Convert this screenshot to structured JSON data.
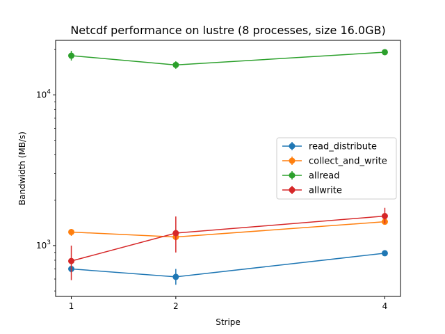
{
  "chart_data": {
    "type": "line",
    "title": "Netcdf performance on lustre (8 processes, size 16.0GB)",
    "xlabel": "Stripe",
    "ylabel": "Bandwidth (MB/s)",
    "x": [
      1,
      2,
      4
    ],
    "x_tick_labels": [
      "1",
      "2",
      "4"
    ],
    "y_scale": "log",
    "ylim": [
      460,
      23000
    ],
    "y_ticks": [
      {
        "value": 1000,
        "base": "10",
        "exp": "3"
      },
      {
        "value": 10000,
        "base": "10",
        "exp": "4"
      }
    ],
    "legend_position": "center-right",
    "grid": false,
    "series": [
      {
        "name": "read_distribute",
        "color": "#1f77b4",
        "values": [
          700,
          620,
          890
        ],
        "err_low": [
          660,
          550,
          870
        ],
        "err_high": [
          740,
          700,
          910
        ]
      },
      {
        "name": "collect_and_write",
        "color": "#ff7f0e",
        "values": [
          1230,
          1140,
          1440
        ],
        "err_low": [
          1160,
          1080,
          1400
        ],
        "err_high": [
          1290,
          1200,
          1480
        ]
      },
      {
        "name": "allread",
        "color": "#2ca02c",
        "values": [
          18200,
          15800,
          19200
        ],
        "err_low": [
          16900,
          14900,
          18800
        ],
        "err_high": [
          19600,
          16700,
          19600
        ]
      },
      {
        "name": "allwrite",
        "color": "#d62728",
        "values": [
          790,
          1210,
          1570
        ],
        "err_low": [
          590,
          900,
          1400
        ],
        "err_high": [
          1000,
          1560,
          1780
        ]
      }
    ]
  }
}
